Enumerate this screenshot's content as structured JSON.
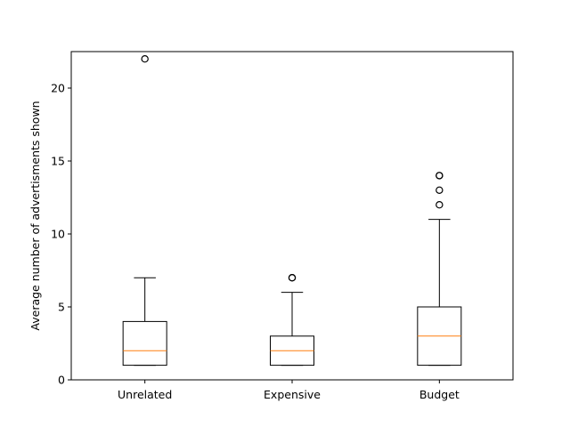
{
  "chart_data": {
    "type": "boxplot",
    "title": "",
    "xlabel": "",
    "ylabel": "Average number of advertisments shown",
    "ylim": [
      0,
      22.5
    ],
    "yticks": [
      0,
      5,
      10,
      15,
      20
    ],
    "grid": false,
    "categories": [
      "Unrelated",
      "Expensive",
      "Budget"
    ],
    "boxes": [
      {
        "label": "Unrelated",
        "whisker_low": 1,
        "q1": 1,
        "median": 2,
        "q3": 4,
        "whisker_high": 7,
        "outliers": [
          22
        ]
      },
      {
        "label": "Expensive",
        "whisker_low": 1,
        "q1": 1,
        "median": 2,
        "q3": 3,
        "whisker_high": 6,
        "outliers": [
          7,
          7
        ]
      },
      {
        "label": "Budget",
        "whisker_low": 1,
        "q1": 1,
        "median": 3,
        "q3": 5,
        "whisker_high": 11,
        "outliers": [
          12,
          13,
          14,
          14
        ]
      }
    ],
    "colors": {
      "box": "#000000",
      "median": "#ff7f0e",
      "outlier": "#000000"
    }
  }
}
